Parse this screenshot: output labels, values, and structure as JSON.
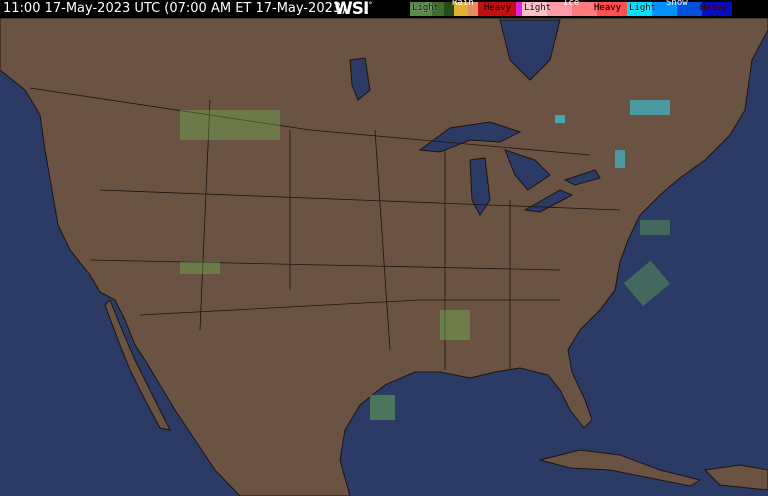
{
  "header": {
    "timestamp": "11:00 17-May-2023 UTC  (07:00 AM ET 17-May-2023)",
    "logo": "WSI",
    "logo_mark": "°"
  },
  "legend": [
    {
      "type": "Rain",
      "light": "Light",
      "heavy": "Heavy",
      "colors": [
        "#5a8a4a",
        "#3e6e2e",
        "#254d1a",
        "#e0b030",
        "#e09060",
        "#c01010",
        "#e020e0"
      ]
    },
    {
      "type": "Ice",
      "light": "Light",
      "heavy": "Heavy",
      "colors": [
        "#ffc0c8",
        "#ff9aa8",
        "#ff7a7a",
        "#ff5050"
      ]
    },
    {
      "type": "Snow",
      "light": "Light",
      "heavy": "Heavy",
      "colors": [
        "#00e0ff",
        "#0090ff",
        "#0050e0",
        "#0010c0"
      ]
    }
  ],
  "colors": {
    "ocean": "#2c3b66",
    "land": "#6b5344",
    "borders": "#1a1410",
    "precip_light_rain": "#6fbf4f",
    "precip_light_snow": "#30e0ff"
  }
}
